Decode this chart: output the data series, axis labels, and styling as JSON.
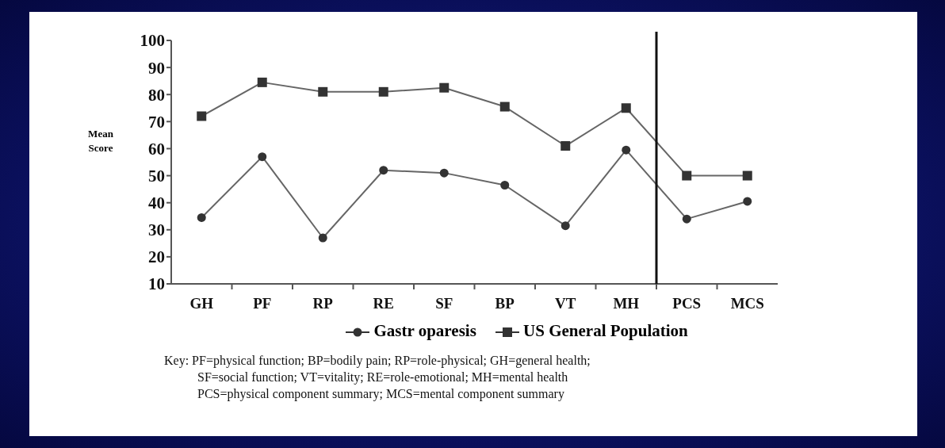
{
  "chart_data": {
    "type": "line",
    "ylabel": "Mean Score",
    "categories": [
      "GH",
      "PF",
      "RP",
      "RE",
      "SF",
      "BP",
      "VT",
      "MH",
      "PCS",
      "MCS"
    ],
    "series": [
      {
        "name": "Gastr oparesis",
        "color": "#333333",
        "marker": "circle",
        "values": [
          34.5,
          57,
          27,
          52,
          51,
          46.5,
          31.5,
          59.5,
          34,
          40.5
        ]
      },
      {
        "name": "US General Population",
        "color": "#333333",
        "marker": "square",
        "values": [
          72,
          84.5,
          81,
          81,
          82.5,
          75.5,
          61,
          75,
          50,
          50
        ]
      }
    ],
    "ylim": [
      10,
      100
    ],
    "yticks": [
      10,
      20,
      30,
      40,
      50,
      60,
      70,
      80,
      90,
      100
    ],
    "legend": "bottom",
    "annotations": [
      "Key:  PF=physical function; BP=bodily pain; RP=role-physical; GH=general health;",
      "SF=social function; VT=vitality; RE=role-emotional; MH=mental health",
      "PCS=physical component summary; MCS=mental component summary"
    ]
  }
}
